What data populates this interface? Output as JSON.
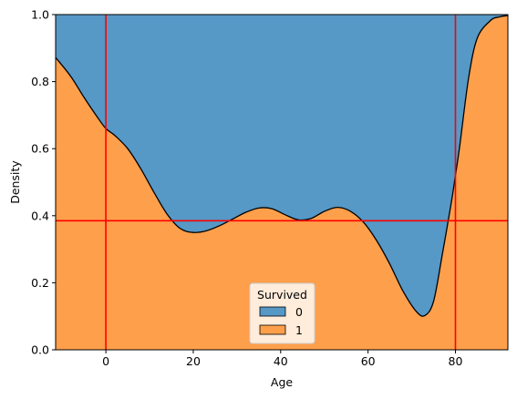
{
  "chart_data": {
    "type": "area",
    "subtype": "stacked-fill-kde",
    "xlabel": "Age",
    "ylabel": "Density",
    "xlim": [
      -11.5,
      92
    ],
    "ylim": [
      0,
      1
    ],
    "x_ticks": [
      0,
      20,
      40,
      60,
      80
    ],
    "y_ticks": [
      0.0,
      0.2,
      0.4,
      0.6,
      0.8,
      1.0
    ],
    "x_tick_labels": [
      "0",
      "20",
      "40",
      "60",
      "80"
    ],
    "y_tick_labels": [
      "0.0",
      "0.2",
      "0.4",
      "0.6",
      "0.8",
      "1.0"
    ],
    "boundary": {
      "x": [
        -11.5,
        -8,
        -5,
        -2,
        0,
        2,
        5,
        8,
        11,
        14,
        17,
        20,
        23,
        26,
        29,
        32,
        35,
        38,
        41,
        44,
        47,
        50,
        53,
        56,
        59,
        62,
        65,
        68,
        71,
        73,
        75,
        77,
        79,
        80,
        81,
        83,
        85,
        88,
        90,
        92
      ],
      "y": [
        0.872,
        0.815,
        0.753,
        0.695,
        0.66,
        0.64,
        0.6,
        0.54,
        0.47,
        0.405,
        0.362,
        0.35,
        0.355,
        0.37,
        0.39,
        0.41,
        0.423,
        0.421,
        0.403,
        0.388,
        0.392,
        0.413,
        0.425,
        0.413,
        0.38,
        0.325,
        0.255,
        0.175,
        0.115,
        0.102,
        0.145,
        0.285,
        0.435,
        0.52,
        0.61,
        0.81,
        0.93,
        0.982,
        0.993,
        0.997
      ]
    },
    "series": [
      {
        "name": "0",
        "color": "#5698c6"
      },
      {
        "name": "1",
        "color": "#fe9f4b"
      }
    ],
    "reference_lines": {
      "vertical": [
        0,
        80
      ],
      "horizontal": [
        0.385
      ],
      "color": "#ff0000"
    },
    "legend": {
      "title": "Survived",
      "placement": "lower-center",
      "entries": [
        "0",
        "1"
      ]
    },
    "grid": false
  }
}
